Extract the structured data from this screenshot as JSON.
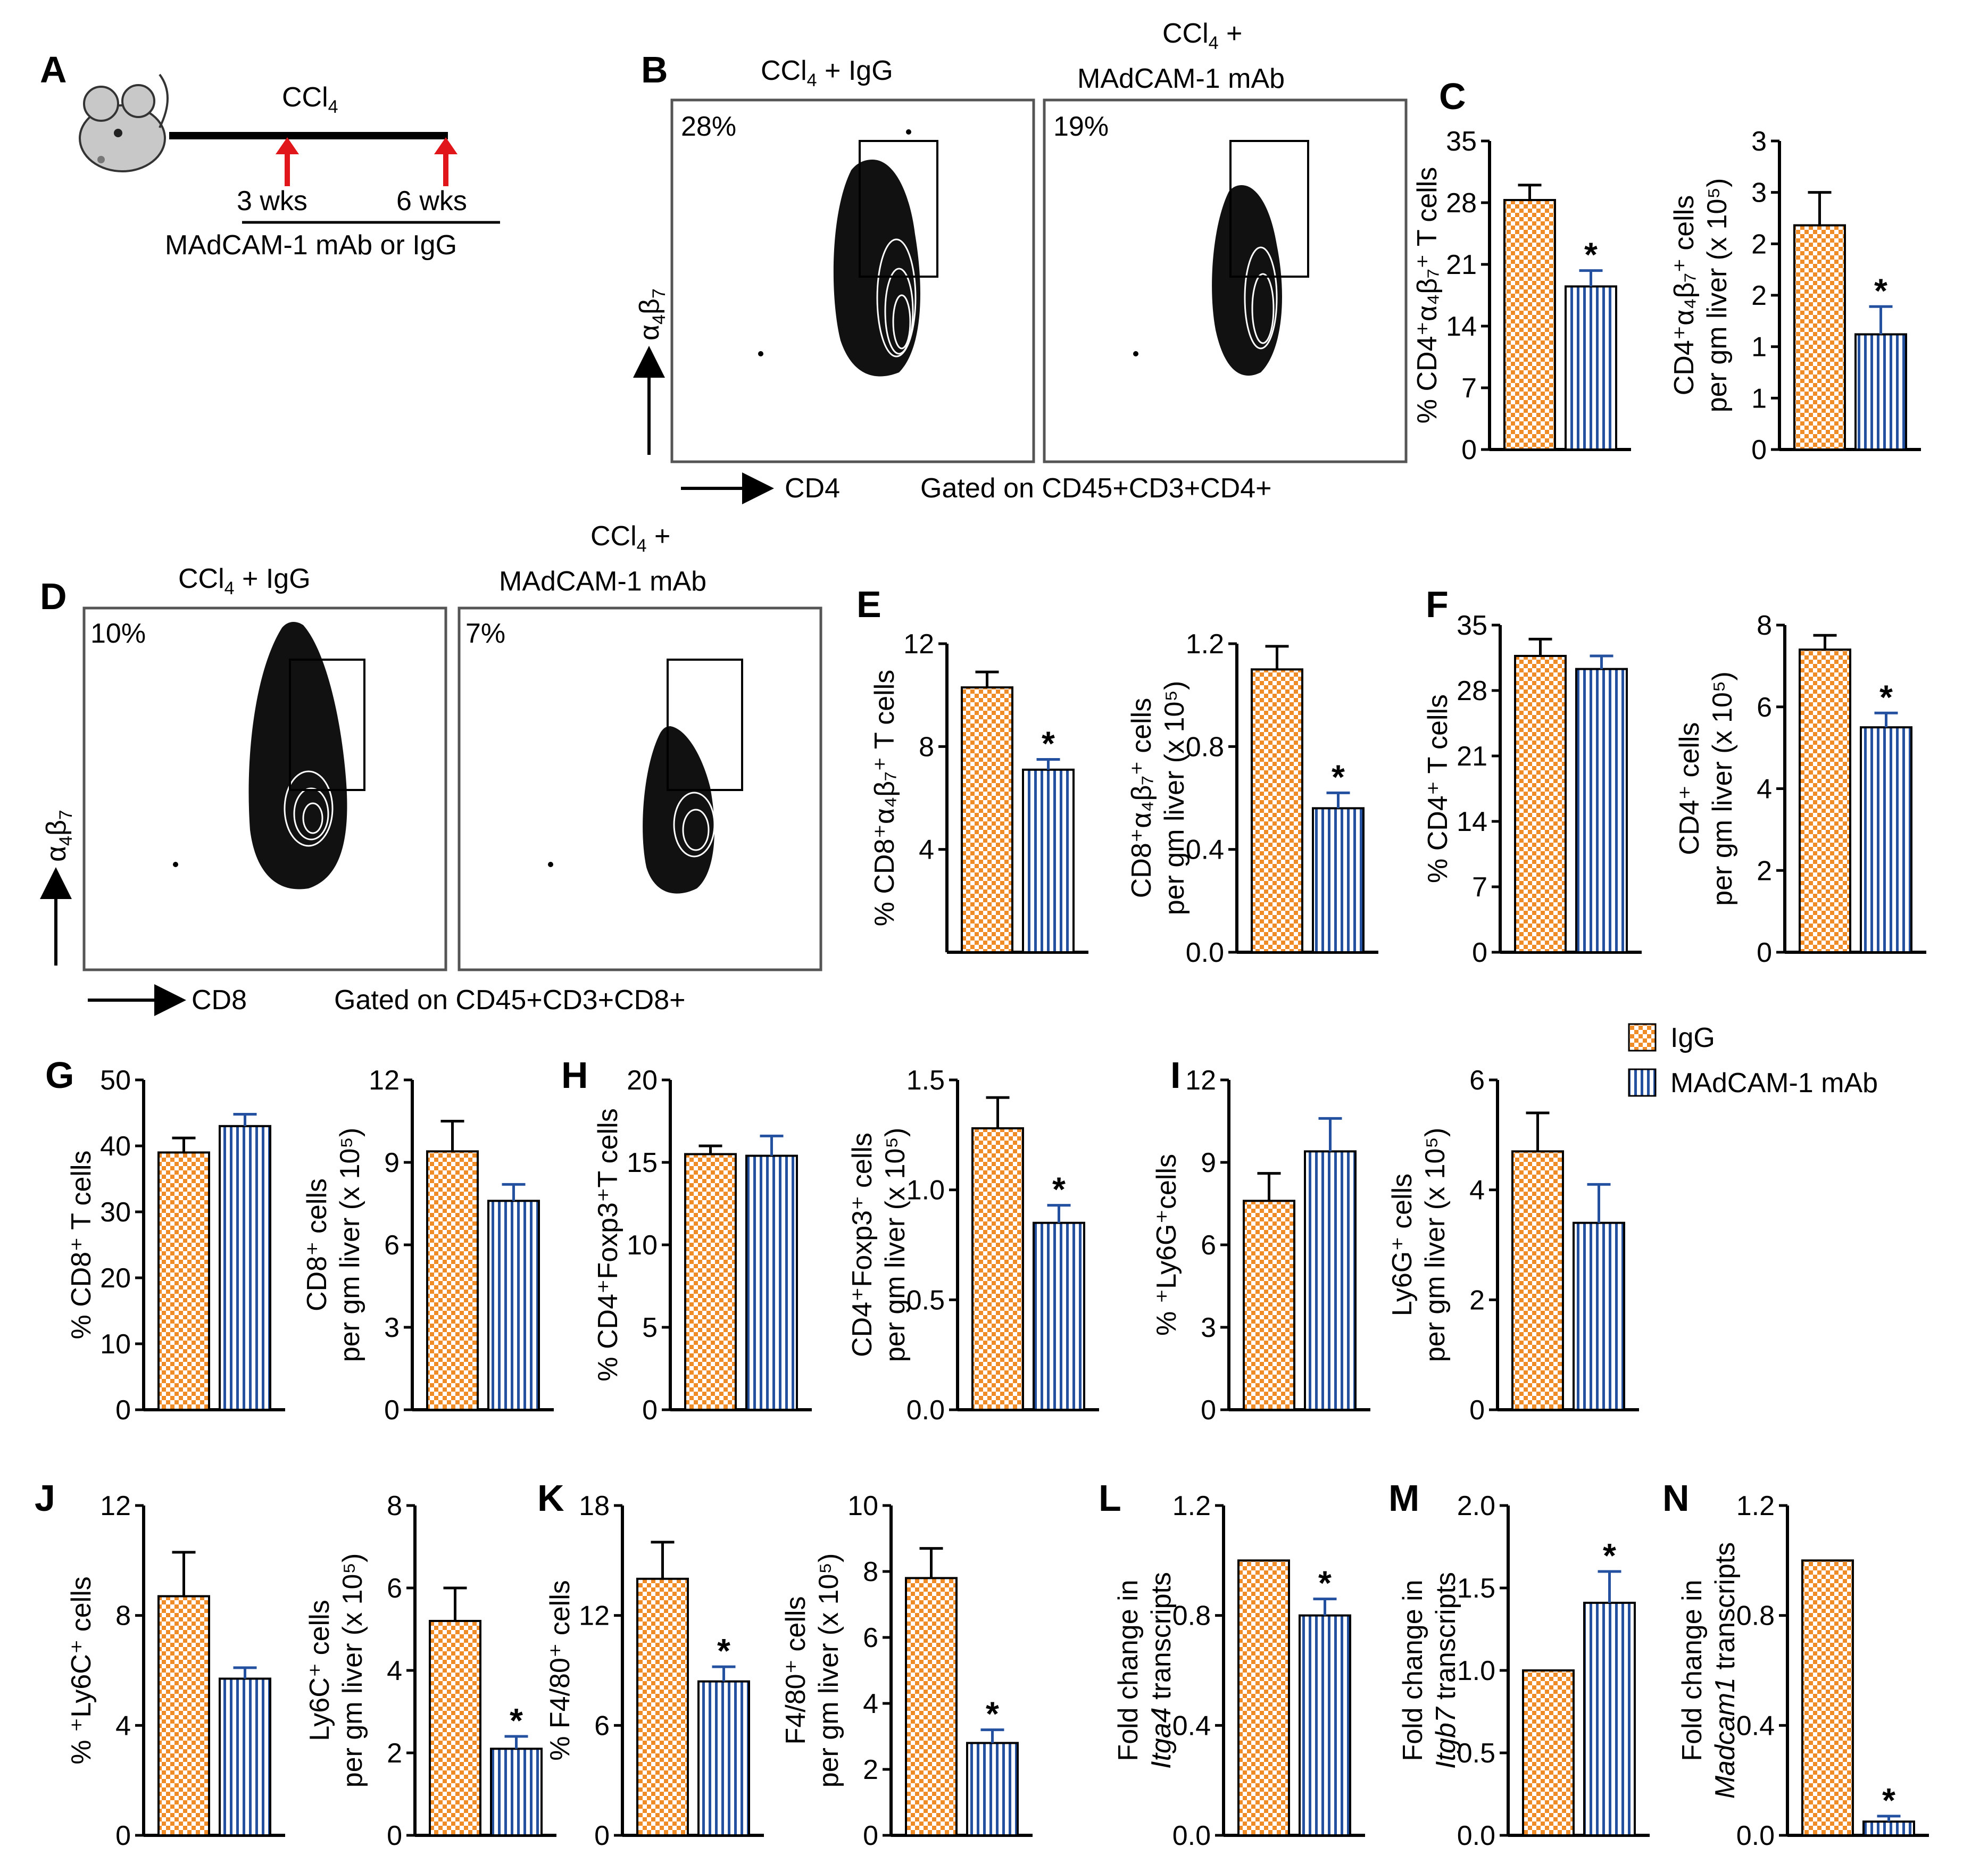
{
  "colors": {
    "igg_fill": "#f08c28",
    "mab_stripe": "#2450a0",
    "axis": "#000000",
    "arrow": "#e0161b"
  },
  "icons": {
    "mouse": "mouse-icon"
  },
  "legend": {
    "igg": "IgG",
    "mab": "MAdCAM-1 mAb"
  },
  "panel_a": {
    "letter": "A",
    "treatment": "CCl",
    "treatment_sub": "4",
    "time1": "3 wks",
    "time2": "6 wks",
    "regimen": "MAdCAM-1 mAb or IgG"
  },
  "panel_b": {
    "letter": "B",
    "plot1_title_main": "CCl",
    "plot1_title_sub": "4",
    "plot1_title_rest": " + IgG",
    "plot1_pct": "28%",
    "plot2_title_line1_main": "CCl",
    "plot2_title_line1_sub": "4",
    "plot2_title_line1_rest": " +",
    "plot2_title_line2": "MAdCAM-1 mAb",
    "plot2_pct": "19%",
    "x_axis": "CD4",
    "y_axis_main": "α",
    "y_axis_sub1": "4",
    "y_axis_b": "β",
    "y_axis_sub2": "7",
    "gate": "Gated on CD45+CD3+CD4+"
  },
  "panel_d": {
    "letter": "D",
    "plot1_title_main": "CCl",
    "plot1_title_sub": "4",
    "plot1_title_rest": " + IgG",
    "plot1_pct": "10%",
    "plot2_title_line1_main": "CCl",
    "plot2_title_line1_sub": "4",
    "plot2_title_line1_rest": " +",
    "plot2_title_line2": "MAdCAM-1 mAb",
    "plot2_pct": "7%",
    "x_axis": "CD8",
    "y_axis_main": "α",
    "y_axis_sub1": "4",
    "y_axis_b": "β",
    "y_axis_sub2": "7",
    "gate": "Gated on CD45+CD3+CD8+"
  },
  "chart_data": [
    {
      "id": "C1",
      "letter": "C",
      "type": "bar",
      "categories": [
        "IgG",
        "MAdCAM-1 mAb"
      ],
      "values": [
        28.3,
        18.5
      ],
      "errors": [
        1.7,
        1.8
      ],
      "sig": [
        false,
        true
      ],
      "ylim": [
        0,
        35
      ],
      "ticks": [
        0,
        7,
        14,
        21,
        28,
        35
      ],
      "tick_labels": [
        "0",
        "7",
        "14",
        "21",
        "28",
        "35"
      ],
      "ylabel_lines": [
        "% CD4⁺α₄β₇⁺ T cells"
      ]
    },
    {
      "id": "C2",
      "type": "bar",
      "categories": [
        "IgG",
        "MAdCAM-1 mAb"
      ],
      "values": [
        2.18,
        1.12
      ],
      "errors": [
        0.32,
        0.27
      ],
      "sig": [
        false,
        true
      ],
      "ylim": [
        0,
        3
      ],
      "ticks": [
        0,
        0.5,
        1,
        1.5,
        2,
        2.5,
        3
      ],
      "tick_labels": [
        "0",
        "1",
        "1",
        "2",
        "2",
        "3",
        "3"
      ],
      "ylabel_lines": [
        "CD4⁺α₄β₇⁺ cells",
        "per gm liver (x 10⁵)"
      ]
    },
    {
      "id": "E1",
      "letter": "E",
      "type": "bar",
      "categories": [
        "IgG",
        "MAdCAM-1 mAb"
      ],
      "values": [
        10.3,
        7.1
      ],
      "errors": [
        0.6,
        0.4
      ],
      "sig": [
        false,
        true
      ],
      "ylim": [
        0,
        12
      ],
      "ticks": [
        4,
        8,
        12
      ],
      "tick_labels": [
        "4",
        "8",
        "12"
      ],
      "ylabel_lines": [
        "% CD8⁺α₄β₇⁺ T cells"
      ]
    },
    {
      "id": "E2",
      "type": "bar",
      "categories": [
        "IgG",
        "MAdCAM-1 mAb"
      ],
      "values": [
        1.1,
        0.56
      ],
      "errors": [
        0.09,
        0.06
      ],
      "sig": [
        false,
        true
      ],
      "ylim": [
        0,
        1.2
      ],
      "ticks": [
        0,
        0.4,
        0.8,
        1.2
      ],
      "tick_labels": [
        "0.0",
        "0.4",
        "0.8",
        "1.2"
      ],
      "ylabel_lines": [
        "CD8⁺α₄β₇⁺ cells",
        "per gm liver (x 10⁵)"
      ]
    },
    {
      "id": "F1",
      "letter": "F",
      "type": "bar",
      "categories": [
        "IgG",
        "MAdCAM-1 mAb"
      ],
      "values": [
        31.7,
        30.3
      ],
      "errors": [
        1.8,
        1.4
      ],
      "sig": [
        false,
        false
      ],
      "ylim": [
        0,
        35
      ],
      "ticks": [
        0,
        7,
        14,
        21,
        28,
        35
      ],
      "tick_labels": [
        "0",
        "7",
        "14",
        "21",
        "28",
        "35"
      ],
      "ylabel_lines": [
        "% CD4⁺ T cells"
      ]
    },
    {
      "id": "F2",
      "type": "bar",
      "categories": [
        "IgG",
        "MAdCAM-1 mAb"
      ],
      "values": [
        7.4,
        5.5
      ],
      "errors": [
        0.35,
        0.35
      ],
      "sig": [
        false,
        true
      ],
      "ylim": [
        0,
        8
      ],
      "ticks": [
        0,
        2,
        4,
        6,
        8
      ],
      "tick_labels": [
        "0",
        "2",
        "4",
        "6",
        "8"
      ],
      "ylabel_lines": [
        "CD4⁺ cells",
        "per gm liver (x 10⁵)"
      ]
    },
    {
      "id": "G1",
      "letter": "G",
      "type": "bar",
      "categories": [
        "IgG",
        "MAdCAM-1 mAb"
      ],
      "values": [
        39,
        43
      ],
      "errors": [
        2.2,
        1.8
      ],
      "sig": [
        false,
        false
      ],
      "ylim": [
        0,
        50
      ],
      "ticks": [
        0,
        10,
        20,
        30,
        40,
        50
      ],
      "tick_labels": [
        "0",
        "10",
        "20",
        "30",
        "40",
        "50"
      ],
      "ylabel_lines": [
        "% CD8⁺ T cells"
      ]
    },
    {
      "id": "G2",
      "type": "bar",
      "categories": [
        "IgG",
        "MAdCAM-1 mAb"
      ],
      "values": [
        9.4,
        7.6
      ],
      "errors": [
        1.1,
        0.6
      ],
      "sig": [
        false,
        false
      ],
      "ylim": [
        0,
        12
      ],
      "ticks": [
        0,
        3,
        6,
        9,
        12
      ],
      "tick_labels": [
        "0",
        "3",
        "6",
        "9",
        "12"
      ],
      "ylabel_lines": [
        "CD8⁺ cells",
        "per gm liver (x 10⁵)"
      ]
    },
    {
      "id": "H1",
      "letter": "H",
      "type": "bar",
      "categories": [
        "IgG",
        "MAdCAM-1 mAb"
      ],
      "values": [
        15.5,
        15.4
      ],
      "errors": [
        0.5,
        1.2
      ],
      "sig": [
        false,
        false
      ],
      "ylim": [
        0,
        20
      ],
      "ticks": [
        0,
        5,
        10,
        15,
        20
      ],
      "tick_labels": [
        "0",
        "5",
        "10",
        "15",
        "20"
      ],
      "ylabel_lines": [
        "% CD4⁺Foxp3⁺T cells"
      ]
    },
    {
      "id": "H2",
      "type": "bar",
      "categories": [
        "IgG",
        "MAdCAM-1 mAb"
      ],
      "values": [
        1.28,
        0.85
      ],
      "errors": [
        0.14,
        0.08
      ],
      "sig": [
        false,
        true
      ],
      "ylim": [
        0,
        1.5
      ],
      "ticks": [
        0,
        0.5,
        1.0,
        1.5
      ],
      "tick_labels": [
        "0.0",
        "0.5",
        "1.0",
        "1.5"
      ],
      "ylabel_lines": [
        "CD4⁺Foxp3⁺ cells",
        "per gm liver (x 10⁵)"
      ]
    },
    {
      "id": "I1",
      "letter": "I",
      "type": "bar",
      "categories": [
        "IgG",
        "MAdCAM-1 mAb"
      ],
      "values": [
        7.6,
        9.4
      ],
      "errors": [
        1.0,
        1.2
      ],
      "sig": [
        false,
        false
      ],
      "ylim": [
        0,
        12
      ],
      "ticks": [
        0,
        3,
        6,
        9,
        12
      ],
      "tick_labels": [
        "0",
        "3",
        "6",
        "9",
        "12"
      ],
      "ylabel_lines": [
        "% ⁺Ly6G⁺cells"
      ]
    },
    {
      "id": "I2",
      "type": "bar",
      "categories": [
        "IgG",
        "MAdCAM-1 mAb"
      ],
      "values": [
        4.7,
        3.4
      ],
      "errors": [
        0.7,
        0.7
      ],
      "sig": [
        false,
        false
      ],
      "ylim": [
        0,
        6
      ],
      "ticks": [
        0,
        2,
        4,
        6
      ],
      "tick_labels": [
        "0",
        "2",
        "4",
        "6"
      ],
      "ylabel_lines": [
        "Ly6G⁺ cells",
        "per gm liver (x 10⁵)"
      ]
    },
    {
      "id": "J1",
      "letter": "J",
      "type": "bar",
      "categories": [
        "IgG",
        "MAdCAM-1 mAb"
      ],
      "values": [
        8.7,
        5.7
      ],
      "errors": [
        1.6,
        0.4
      ],
      "sig": [
        false,
        false
      ],
      "ylim": [
        0,
        12
      ],
      "ticks": [
        0,
        4,
        8,
        12
      ],
      "tick_labels": [
        "0",
        "4",
        "8",
        "12"
      ],
      "ylabel_lines": [
        "% ⁺Ly6C⁺ cells"
      ]
    },
    {
      "id": "J2",
      "type": "bar",
      "categories": [
        "IgG",
        "MAdCAM-1 mAb"
      ],
      "values": [
        5.2,
        2.1
      ],
      "errors": [
        0.8,
        0.3
      ],
      "sig": [
        false,
        true
      ],
      "ylim": [
        0,
        8
      ],
      "ticks": [
        0,
        2,
        4,
        6,
        8
      ],
      "tick_labels": [
        "0",
        "2",
        "4",
        "6",
        "8"
      ],
      "ylabel_lines": [
        "Ly6C⁺ cells",
        "per gm liver (x 10⁵)"
      ]
    },
    {
      "id": "K1",
      "letter": "K",
      "type": "bar",
      "categories": [
        "IgG",
        "MAdCAM-1 mAb"
      ],
      "values": [
        14.0,
        8.4
      ],
      "errors": [
        2.0,
        0.8
      ],
      "sig": [
        false,
        true
      ],
      "ylim": [
        0,
        18
      ],
      "ticks": [
        0,
        6,
        12,
        18
      ],
      "tick_labels": [
        "0",
        "6",
        "12",
        "18"
      ],
      "ylabel_lines": [
        "% F4/80⁺ cells"
      ]
    },
    {
      "id": "K2",
      "type": "bar",
      "categories": [
        "IgG",
        "MAdCAM-1 mAb"
      ],
      "values": [
        7.8,
        2.8
      ],
      "errors": [
        0.9,
        0.4
      ],
      "sig": [
        false,
        true
      ],
      "ylim": [
        0,
        10
      ],
      "ticks": [
        0,
        2,
        4,
        6,
        8,
        10
      ],
      "tick_labels": [
        "0",
        "2",
        "4",
        "6",
        "8",
        "10"
      ],
      "ylabel_lines": [
        "F4/80⁺ cells",
        "per gm liver (x 10⁵)"
      ]
    },
    {
      "id": "L",
      "letter": "L",
      "type": "bar",
      "categories": [
        "IgG",
        "MAdCAM-1 mAb"
      ],
      "values": [
        1.0,
        0.8
      ],
      "errors": [
        0,
        0.06
      ],
      "sig": [
        false,
        true
      ],
      "ylim": [
        0,
        1.2
      ],
      "ticks": [
        0,
        0.4,
        0.8,
        1.2
      ],
      "tick_labels": [
        "0.0",
        "0.4",
        "0.8",
        "1.2"
      ],
      "ylabel_lines": [
        "Fold change in",
        "Itga4 transcripts"
      ]
    },
    {
      "id": "M",
      "letter": "M",
      "type": "bar",
      "categories": [
        "IgG",
        "MAdCAM-1 mAb"
      ],
      "values": [
        1.0,
        1.41
      ],
      "errors": [
        0,
        0.19
      ],
      "sig": [
        false,
        true
      ],
      "ylim": [
        0,
        2.0
      ],
      "ticks": [
        0,
        0.5,
        1.0,
        1.5,
        2.0
      ],
      "tick_labels": [
        "0.0",
        "0.5",
        "1.0",
        "1.5",
        "2.0"
      ],
      "ylabel_lines": [
        "Fold change in",
        "Itgb7 transcripts"
      ]
    },
    {
      "id": "N",
      "letter": "N",
      "type": "bar",
      "categories": [
        "IgG",
        "MAdCAM-1 mAb"
      ],
      "values": [
        1.0,
        0.05
      ],
      "errors": [
        0,
        0.02
      ],
      "sig": [
        false,
        true
      ],
      "ylim": [
        0,
        1.2
      ],
      "ticks": [
        0,
        0.4,
        0.8,
        1.2
      ],
      "tick_labels": [
        "0.0",
        "0.4",
        "0.8",
        "1.2"
      ],
      "ylabel_lines": [
        "Fold change in",
        "Madcam1 transcripts"
      ]
    }
  ]
}
